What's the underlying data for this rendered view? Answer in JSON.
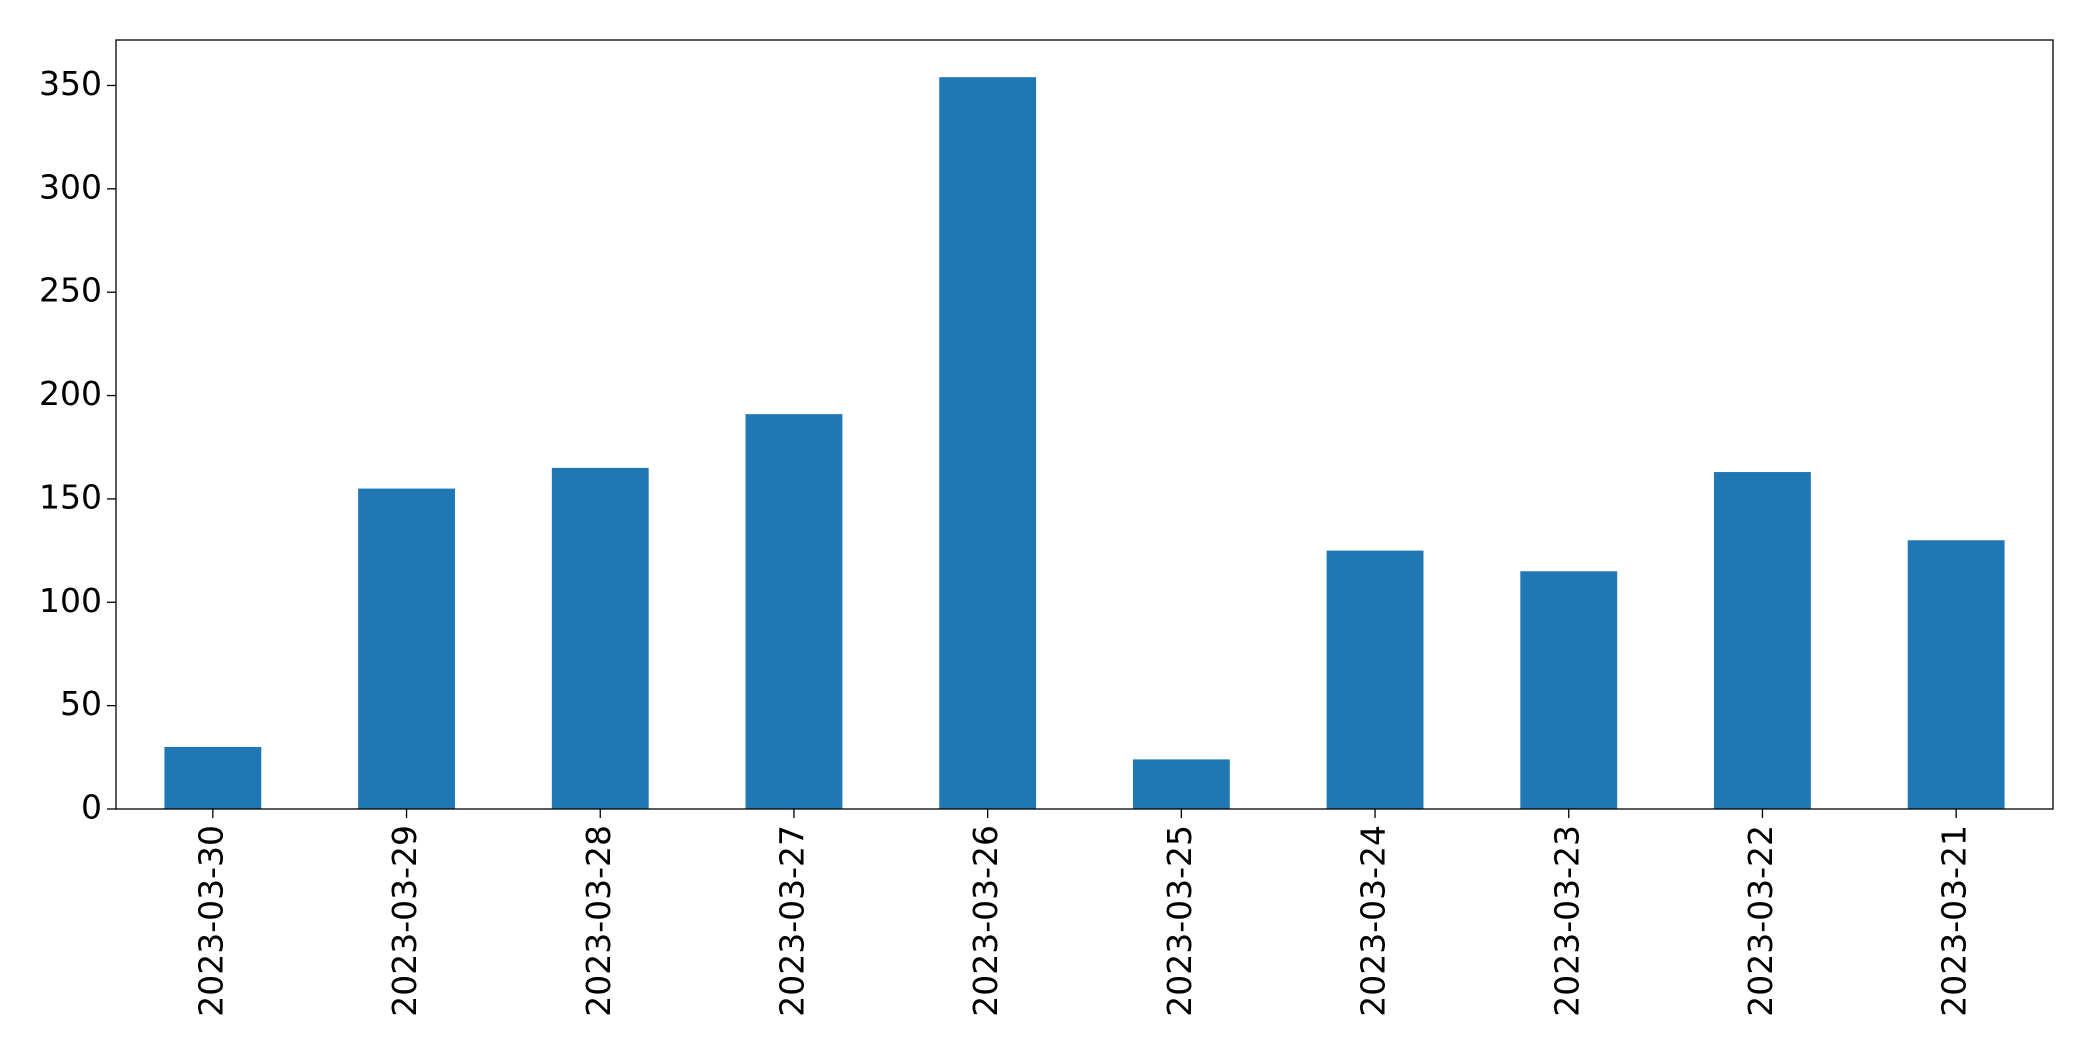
{
  "chart_data": {
    "type": "bar",
    "categories": [
      "2023-03-30",
      "2023-03-29",
      "2023-03-28",
      "2023-03-27",
      "2023-03-26",
      "2023-03-25",
      "2023-03-24",
      "2023-03-23",
      "2023-03-22",
      "2023-03-21"
    ],
    "values": [
      30,
      155,
      165,
      191,
      354,
      24,
      125,
      115,
      163,
      130
    ],
    "color": "#1f77b4",
    "ylim": [
      0,
      372
    ],
    "yticks": [
      0,
      50,
      100,
      150,
      200,
      250,
      300,
      350
    ],
    "grid": false
  }
}
